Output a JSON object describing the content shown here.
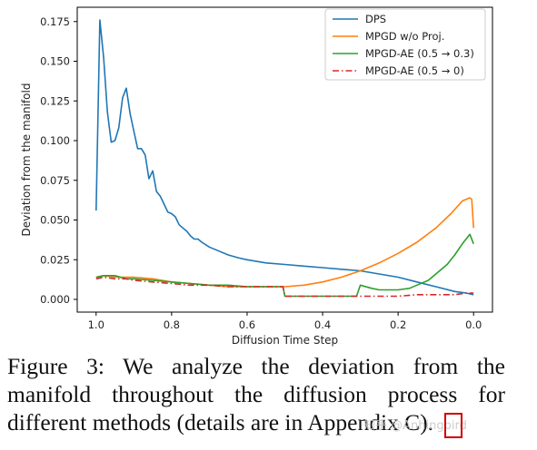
{
  "chart_data": {
    "type": "line",
    "title": "",
    "xlabel": "Diffusion Time Step",
    "ylabel": "Deviation from the manifold",
    "xlim": [
      1.05,
      -0.05
    ],
    "ylim": [
      -0.008,
      0.184
    ],
    "x_inverted": true,
    "xticks": [
      "1.0",
      "0.8",
      "0.6",
      "0.4",
      "0.2",
      "0.0"
    ],
    "xtick_values": [
      1.0,
      0.8,
      0.6,
      0.4,
      0.2,
      0.0
    ],
    "yticks": [
      "0.000",
      "0.025",
      "0.050",
      "0.075",
      "0.100",
      "0.125",
      "0.150",
      "0.175"
    ],
    "ytick_values": [
      0.0,
      0.025,
      0.05,
      0.075,
      0.1,
      0.125,
      0.15,
      0.175
    ],
    "grid": false,
    "legend_position": "top-right",
    "series": [
      {
        "name": "DPS",
        "color": "#1f77b4",
        "style": "solid",
        "x": [
          1.0,
          0.99,
          0.98,
          0.97,
          0.96,
          0.95,
          0.94,
          0.93,
          0.92,
          0.91,
          0.9,
          0.89,
          0.88,
          0.87,
          0.86,
          0.85,
          0.84,
          0.83,
          0.82,
          0.81,
          0.8,
          0.79,
          0.78,
          0.77,
          0.76,
          0.75,
          0.74,
          0.73,
          0.72,
          0.7,
          0.68,
          0.65,
          0.62,
          0.6,
          0.55,
          0.5,
          0.45,
          0.4,
          0.35,
          0.3,
          0.25,
          0.2,
          0.15,
          0.1,
          0.05,
          0.02,
          0.0
        ],
        "y": [
          0.056,
          0.176,
          0.152,
          0.118,
          0.099,
          0.1,
          0.108,
          0.127,
          0.133,
          0.117,
          0.106,
          0.095,
          0.095,
          0.091,
          0.076,
          0.081,
          0.068,
          0.065,
          0.06,
          0.055,
          0.054,
          0.052,
          0.047,
          0.045,
          0.043,
          0.04,
          0.038,
          0.038,
          0.036,
          0.033,
          0.031,
          0.028,
          0.026,
          0.025,
          0.023,
          0.022,
          0.021,
          0.02,
          0.019,
          0.018,
          0.016,
          0.014,
          0.011,
          0.008,
          0.005,
          0.004,
          0.003
        ]
      },
      {
        "name": "MPGD w/o Proj.",
        "color": "#ff7f0e",
        "style": "solid",
        "x": [
          1.0,
          0.98,
          0.95,
          0.92,
          0.9,
          0.85,
          0.8,
          0.75,
          0.7,
          0.65,
          0.6,
          0.55,
          0.5,
          0.45,
          0.4,
          0.35,
          0.3,
          0.25,
          0.2,
          0.15,
          0.1,
          0.06,
          0.03,
          0.01,
          0.005,
          0.0
        ],
        "y": [
          0.014,
          0.015,
          0.014,
          0.014,
          0.014,
          0.013,
          0.011,
          0.01,
          0.009,
          0.008,
          0.008,
          0.008,
          0.008,
          0.009,
          0.011,
          0.014,
          0.018,
          0.023,
          0.029,
          0.036,
          0.045,
          0.054,
          0.062,
          0.064,
          0.063,
          0.045
        ]
      },
      {
        "name": "MPGD-AE (0.5 → 0.3)",
        "color": "#2ca02c",
        "style": "solid",
        "x": [
          1.0,
          0.98,
          0.95,
          0.92,
          0.9,
          0.85,
          0.8,
          0.75,
          0.7,
          0.65,
          0.6,
          0.55,
          0.505,
          0.5,
          0.45,
          0.4,
          0.35,
          0.31,
          0.3,
          0.27,
          0.25,
          0.22,
          0.2,
          0.17,
          0.15,
          0.12,
          0.1,
          0.07,
          0.05,
          0.03,
          0.01,
          0.0
        ],
        "y": [
          0.014,
          0.015,
          0.015,
          0.013,
          0.013,
          0.012,
          0.011,
          0.01,
          0.009,
          0.009,
          0.008,
          0.008,
          0.008,
          0.002,
          0.002,
          0.002,
          0.002,
          0.002,
          0.009,
          0.007,
          0.006,
          0.006,
          0.006,
          0.007,
          0.009,
          0.012,
          0.016,
          0.022,
          0.028,
          0.035,
          0.041,
          0.035
        ]
      },
      {
        "name": "MPGD-AE (0.5 → 0)",
        "color": "#d62728",
        "style": "dashdot",
        "x": [
          1.0,
          0.98,
          0.95,
          0.92,
          0.9,
          0.85,
          0.8,
          0.75,
          0.7,
          0.65,
          0.6,
          0.55,
          0.505,
          0.5,
          0.45,
          0.4,
          0.35,
          0.3,
          0.25,
          0.2,
          0.15,
          0.1,
          0.05,
          0.02,
          0.0
        ],
        "y": [
          0.013,
          0.014,
          0.013,
          0.013,
          0.012,
          0.011,
          0.01,
          0.009,
          0.009,
          0.008,
          0.008,
          0.008,
          0.008,
          0.002,
          0.002,
          0.002,
          0.002,
          0.002,
          0.002,
          0.002,
          0.003,
          0.003,
          0.003,
          0.004,
          0.004
        ]
      }
    ]
  },
  "caption": {
    "line1": "Figure 3:  We analyze the deviation from the",
    "line2": "manifold throughout the diffusion process for",
    "line3": "different methods (details are in Appendix C)."
  },
  "watermark": "知乎 @Anhingbird"
}
